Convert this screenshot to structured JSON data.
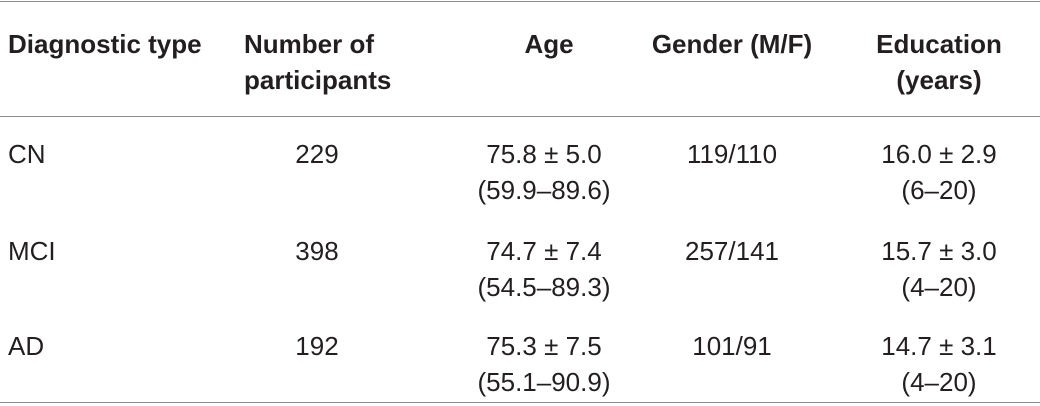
{
  "table": {
    "headers": [
      {
        "line1": "Diagnostic type",
        "line2": ""
      },
      {
        "line1": "Number of",
        "line2": "participants"
      },
      {
        "line1": "Age",
        "line2": ""
      },
      {
        "line1": "Gender (M/F)",
        "line2": ""
      },
      {
        "line1": "Education",
        "line2": "(years)"
      }
    ],
    "rows": [
      {
        "type": "CN",
        "participants": "229",
        "age_mean": "75.8 ± 5.0",
        "age_range": "(59.9–89.6)",
        "gender": "119/110",
        "edu_mean": "16.0 ± 2.9",
        "edu_range": "(6–20)"
      },
      {
        "type": "MCI",
        "participants": "398",
        "age_mean": "74.7 ± 7.4",
        "age_range": "(54.5–89.3)",
        "gender": "257/141",
        "edu_mean": "15.7 ± 3.0",
        "edu_range": "(4–20)"
      },
      {
        "type": "AD",
        "participants": "192",
        "age_mean": "75.3 ± 7.5",
        "age_range": "(55.1–90.9)",
        "gender": "101/91",
        "edu_mean": "14.7 ± 3.1",
        "edu_range": "(4–20)"
      }
    ]
  }
}
